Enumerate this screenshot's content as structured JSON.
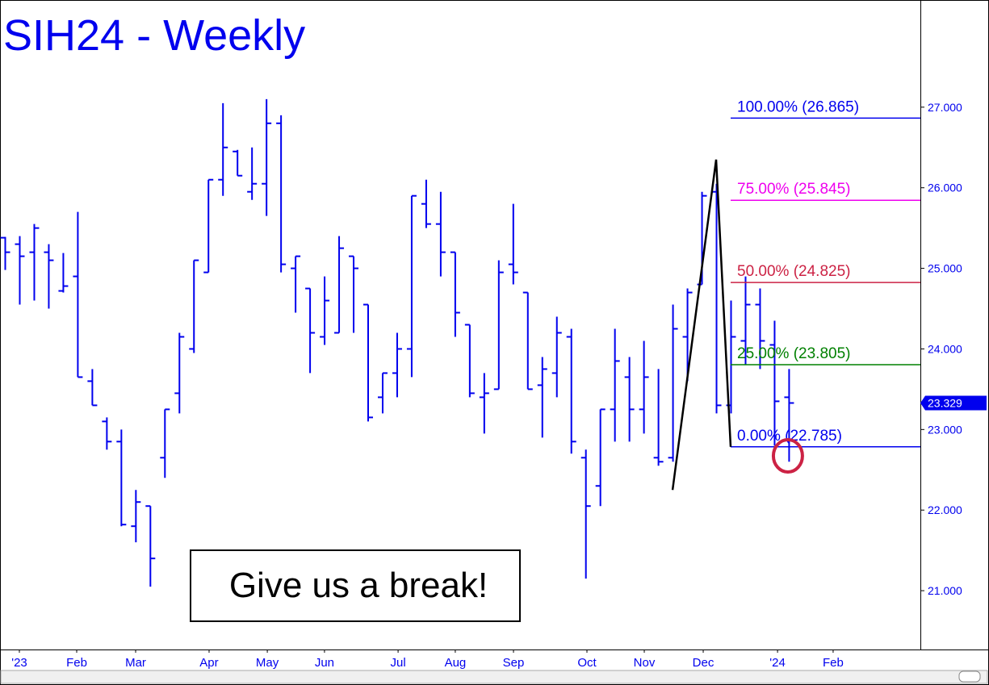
{
  "chart_data": {
    "type": "ohlc",
    "title": "SIH24 - Weekly",
    "color": "#0000ee",
    "open": [
      25.38,
      25.3,
      25.2,
      25.2,
      24.72,
      24.9,
      23.6,
      23.1,
      22.85,
      21.8,
      22.05,
      22.65,
      23.45,
      24.0,
      24.95,
      26.1,
      26.45,
      25.95,
      26.05,
      26.8,
      25.0,
      24.75,
      24.15,
      24.2,
      25.15,
      24.55,
      23.4,
      23.7,
      24.0,
      25.8,
      25.55,
      25.2,
      24.3,
      23.4,
      23.5,
      25.05,
      24.7,
      23.55,
      23.7,
      24.15,
      22.65,
      22.3,
      23.25,
      23.65,
      23.25,
      22.65,
      22.65,
      24.15,
      24.8,
      25.95,
      23.3,
      24.1,
      24.55,
      24.05,
      23.4
    ],
    "high": [
      25.39,
      25.4,
      25.55,
      25.3,
      25.19,
      25.7,
      23.75,
      23.15,
      23.0,
      22.25,
      22.05,
      23.25,
      24.2,
      25.1,
      26.1,
      27.05,
      26.47,
      26.5,
      27.1,
      26.9,
      25.15,
      24.75,
      24.9,
      25.4,
      25.15,
      24.55,
      23.7,
      24.2,
      25.9,
      26.1,
      25.95,
      25.2,
      24.3,
      23.7,
      25.1,
      25.8,
      24.7,
      23.9,
      24.4,
      24.25,
      22.75,
      23.25,
      24.25,
      23.9,
      24.1,
      23.75,
      24.55,
      24.75,
      25.95,
      26.05,
      24.6,
      24.9,
      24.75,
      24.35,
      23.75
    ],
    "low": [
      24.98,
      24.55,
      24.6,
      24.5,
      24.7,
      23.65,
      23.3,
      22.75,
      21.8,
      21.6,
      21.05,
      22.4,
      23.2,
      23.95,
      24.95,
      25.9,
      26.15,
      25.85,
      25.65,
      24.95,
      24.45,
      23.7,
      24.05,
      24.2,
      24.2,
      23.1,
      23.2,
      23.4,
      23.65,
      25.5,
      24.9,
      24.15,
      23.4,
      22.95,
      23.5,
      24.8,
      23.5,
      22.9,
      23.4,
      22.7,
      21.15,
      22.05,
      22.85,
      22.85,
      22.95,
      22.55,
      22.6,
      23.6,
      24.8,
      23.2,
      23.2,
      23.8,
      23.75,
      22.8,
      22.6
    ],
    "close": [
      25.2,
      25.15,
      25.5,
      25.1,
      24.78,
      23.65,
      23.3,
      22.85,
      21.82,
      22.1,
      21.4,
      23.25,
      24.15,
      25.1,
      26.1,
      26.5,
      26.15,
      26.05,
      26.8,
      25.05,
      25.15,
      24.2,
      24.6,
      25.25,
      25.0,
      23.15,
      23.7,
      24.0,
      25.9,
      25.55,
      25.2,
      24.45,
      23.45,
      23.45,
      24.95,
      24.95,
      23.5,
      23.75,
      24.2,
      22.85,
      22.05,
      23.25,
      23.85,
      23.25,
      23.65,
      22.6,
      24.25,
      24.7,
      25.9,
      23.3,
      24.15,
      24.55,
      24.1,
      23.35,
      23.329
    ],
    "xlim": [
      -0.334,
      63.07
    ],
    "xticks": [
      {
        "value": 1.0,
        "label": "'23"
      },
      {
        "value": 4.95,
        "label": "Feb"
      },
      {
        "value": 9.01,
        "label": "Mar"
      },
      {
        "value": 14.07,
        "label": "Apr"
      },
      {
        "value": 18.08,
        "label": "May"
      },
      {
        "value": 22.02,
        "label": "Jun"
      },
      {
        "value": 27.09,
        "label": "Jul"
      },
      {
        "value": 31.03,
        "label": "Aug"
      },
      {
        "value": 35.04,
        "label": "Sep"
      },
      {
        "value": 40.1,
        "label": "Oct"
      },
      {
        "value": 44.05,
        "label": "Nov"
      },
      {
        "value": 48.11,
        "label": "Dec"
      },
      {
        "value": 53.23,
        "label": "'24"
      },
      {
        "value": 57.06,
        "label": "Feb"
      }
    ],
    "ylim": [
      20.27,
      28.33
    ],
    "yticks": [
      {
        "value": 21,
        "label": "21.000"
      },
      {
        "value": 22,
        "label": "22.000"
      },
      {
        "value": 23,
        "label": "23.000"
      },
      {
        "value": 24,
        "label": "24.000"
      },
      {
        "value": 25,
        "label": "25.000"
      },
      {
        "value": 26,
        "label": "26.000"
      },
      {
        "value": 27,
        "label": "27.000"
      }
    ],
    "fib_levels": [
      {
        "label": "100.00% (26.865)",
        "value": 26.865,
        "color": "#0000ee"
      },
      {
        "label": "75.00% (25.845)",
        "value": 25.845,
        "color": "#ee00ee"
      },
      {
        "label": "50.00% (24.825)",
        "value": 24.825,
        "color": "#cc2244"
      },
      {
        "label": "25.00% (23.805)",
        "value": 23.805,
        "color": "#008000"
      },
      {
        "label": "0.00% (22.785)",
        "value": 22.785,
        "color": "#0000ee"
      }
    ],
    "abc_line": {
      "x": [
        46,
        49,
        50
      ],
      "values": [
        22.25,
        26.35,
        22.785
      ],
      "color": "#000000"
    },
    "annotation": "Give us a break!"
  }
}
